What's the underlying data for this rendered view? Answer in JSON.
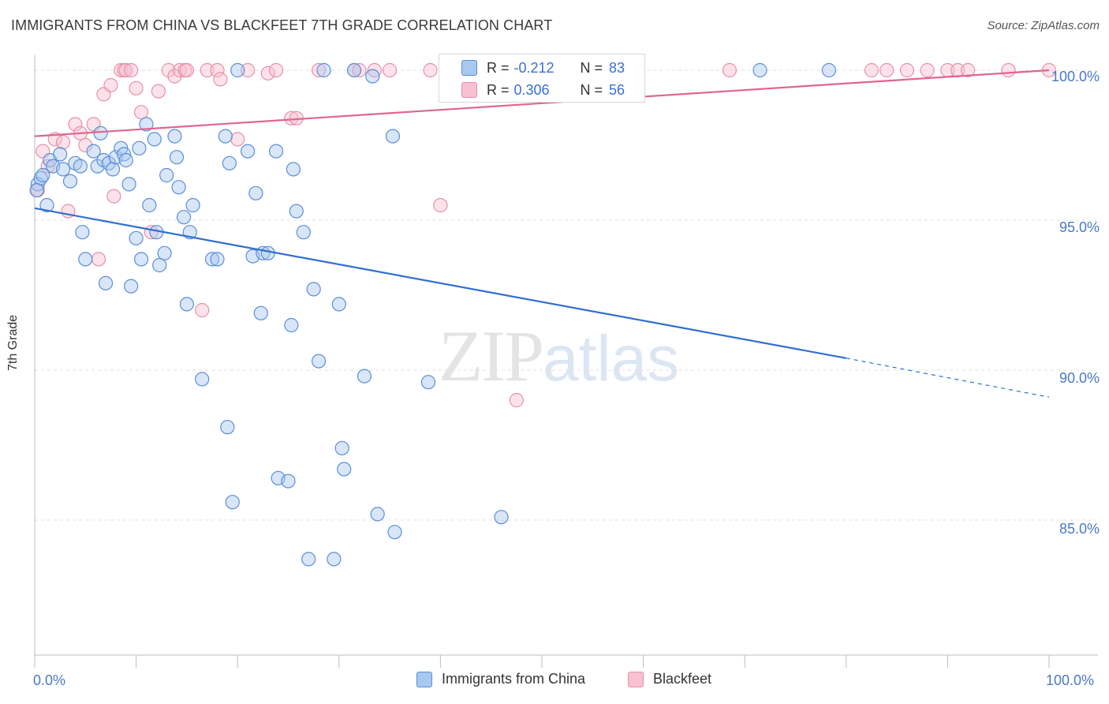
{
  "title": "IMMIGRANTS FROM CHINA VS BLACKFEET 7TH GRADE CORRELATION CHART",
  "source": "Source: ZipAtlas.com",
  "watermark": {
    "zip": "ZIP",
    "atlas": "atlas"
  },
  "legend_top": {
    "rows": [
      {
        "r_label": "R =",
        "r_value": "-0.212",
        "n_label": "N =",
        "n_value": "83"
      },
      {
        "r_label": "R =",
        "r_value": "0.306",
        "n_label": "N =",
        "n_value": "56"
      }
    ]
  },
  "legend_bottom": {
    "china": "Immigrants from China",
    "blackfeet": "Blackfeet"
  },
  "colors": {
    "china_fill": "#a8c8f0",
    "china_stroke": "#5b8fd8",
    "china_line": "#2f6fd0",
    "blackfeet_fill": "#f8c0d0",
    "blackfeet_stroke": "#e890aa",
    "blackfeet_line": "#e0658f",
    "axis_text": "#4a78c8",
    "grid": "#e0e0e0"
  },
  "chart_data": {
    "type": "scatter",
    "title": "IMMIGRANTS FROM CHINA VS BLACKFEET 7TH GRADE CORRELATION CHART",
    "xlabel": "",
    "ylabel": "7th Grade",
    "xlim": [
      0,
      100
    ],
    "ylim": [
      80.5,
      100.5
    ],
    "x_tick_labels": [
      "0.0%",
      "100.0%"
    ],
    "y_ticks": [
      85,
      90,
      95,
      100
    ],
    "y_tick_labels": [
      "85.0%",
      "90.0%",
      "95.0%",
      "100.0%"
    ],
    "grid": "horizontal dashed",
    "legend": "bottom-center",
    "series": [
      {
        "name": "Immigrants from China",
        "R": -0.212,
        "N": 83,
        "trend": {
          "x0": 0,
          "y0": 95.4,
          "x1": 80.0,
          "y1": 90.4,
          "dashed_to_x": 100,
          "dashed_to_y": 89.1
        },
        "points": [
          [
            0.3,
            96.2
          ],
          [
            0.6,
            96.4
          ],
          [
            0.8,
            96.5
          ],
          [
            1.2,
            95.5
          ],
          [
            1.5,
            97.0
          ],
          [
            1.8,
            96.8
          ],
          [
            2.5,
            97.2
          ],
          [
            2.8,
            96.7
          ],
          [
            3.5,
            96.3
          ],
          [
            4.0,
            96.9
          ],
          [
            4.5,
            96.8
          ],
          [
            4.7,
            94.6
          ],
          [
            5.0,
            93.7
          ],
          [
            5.8,
            97.3
          ],
          [
            6.2,
            96.8
          ],
          [
            6.5,
            97.9
          ],
          [
            6.8,
            97.0
          ],
          [
            7.0,
            92.9
          ],
          [
            7.3,
            96.9
          ],
          [
            7.7,
            96.7
          ],
          [
            8.0,
            97.1
          ],
          [
            8.5,
            97.4
          ],
          [
            8.8,
            97.2
          ],
          [
            9.0,
            97.0
          ],
          [
            9.3,
            96.2
          ],
          [
            9.5,
            92.8
          ],
          [
            10.0,
            94.4
          ],
          [
            10.3,
            97.4
          ],
          [
            10.5,
            93.7
          ],
          [
            11.0,
            98.2
          ],
          [
            11.3,
            95.5
          ],
          [
            11.8,
            97.7
          ],
          [
            12.0,
            94.6
          ],
          [
            12.3,
            93.5
          ],
          [
            12.8,
            93.9
          ],
          [
            13.0,
            96.5
          ],
          [
            13.8,
            97.8
          ],
          [
            14.0,
            97.1
          ],
          [
            14.2,
            96.1
          ],
          [
            14.7,
            95.1
          ],
          [
            15.0,
            92.2
          ],
          [
            15.3,
            94.6
          ],
          [
            15.6,
            95.5
          ],
          [
            16.5,
            89.7
          ],
          [
            17.5,
            93.7
          ],
          [
            18.0,
            93.7
          ],
          [
            18.8,
            97.8
          ],
          [
            19.0,
            88.1
          ],
          [
            19.2,
            96.9
          ],
          [
            19.5,
            85.6
          ],
          [
            20.0,
            100.0
          ],
          [
            21.0,
            97.3
          ],
          [
            21.5,
            93.8
          ],
          [
            21.8,
            95.9
          ],
          [
            22.3,
            91.9
          ],
          [
            22.5,
            93.9
          ],
          [
            23.0,
            93.9
          ],
          [
            23.8,
            97.3
          ],
          [
            24.0,
            86.4
          ],
          [
            25.0,
            86.3
          ],
          [
            25.3,
            91.5
          ],
          [
            25.5,
            96.7
          ],
          [
            25.8,
            95.3
          ],
          [
            26.5,
            94.6
          ],
          [
            27.0,
            83.7
          ],
          [
            27.5,
            92.7
          ],
          [
            28.0,
            90.3
          ],
          [
            29.5,
            83.7
          ],
          [
            30.0,
            92.2
          ],
          [
            30.3,
            87.4
          ],
          [
            30.5,
            86.7
          ],
          [
            31.5,
            100.0
          ],
          [
            32.5,
            89.8
          ],
          [
            33.3,
            99.8
          ],
          [
            33.8,
            85.2
          ],
          [
            35.3,
            97.8
          ],
          [
            35.5,
            84.6
          ],
          [
            38.8,
            89.6
          ],
          [
            46.0,
            85.1
          ],
          [
            28.5,
            100.0
          ],
          [
            71.5,
            100.0
          ],
          [
            78.3,
            100.0
          ],
          [
            0.2,
            96.0
          ]
        ]
      },
      {
        "name": "Blackfeet",
        "R": 0.306,
        "N": 56,
        "trend": {
          "x0": 0,
          "y0": 97.8,
          "x1": 100,
          "y1": 100.0
        },
        "points": [
          [
            0.3,
            96.0
          ],
          [
            0.8,
            97.3
          ],
          [
            1.3,
            96.8
          ],
          [
            2.0,
            97.7
          ],
          [
            2.8,
            97.6
          ],
          [
            3.3,
            95.3
          ],
          [
            4.0,
            98.2
          ],
          [
            4.5,
            97.9
          ],
          [
            5.0,
            97.5
          ],
          [
            5.8,
            98.2
          ],
          [
            6.3,
            93.7
          ],
          [
            6.8,
            99.2
          ],
          [
            7.5,
            99.5
          ],
          [
            7.8,
            95.8
          ],
          [
            8.5,
            100.0
          ],
          [
            8.8,
            100.0
          ],
          [
            9.0,
            100.0
          ],
          [
            9.5,
            100.0
          ],
          [
            10.0,
            99.4
          ],
          [
            10.5,
            98.6
          ],
          [
            11.5,
            94.6
          ],
          [
            12.2,
            99.3
          ],
          [
            13.2,
            100.0
          ],
          [
            13.8,
            99.8
          ],
          [
            14.3,
            100.0
          ],
          [
            14.8,
            100.0
          ],
          [
            15.0,
            100.0
          ],
          [
            16.5,
            92.0
          ],
          [
            17.0,
            100.0
          ],
          [
            18.0,
            100.0
          ],
          [
            18.3,
            99.7
          ],
          [
            20.0,
            97.7
          ],
          [
            21.0,
            100.0
          ],
          [
            23.0,
            99.9
          ],
          [
            23.8,
            100.0
          ],
          [
            25.3,
            98.4
          ],
          [
            25.8,
            98.4
          ],
          [
            28.0,
            100.0
          ],
          [
            31.5,
            100.0
          ],
          [
            32.0,
            100.0
          ],
          [
            33.5,
            100.0
          ],
          [
            35.0,
            100.0
          ],
          [
            39.0,
            100.0
          ],
          [
            40.0,
            95.5
          ],
          [
            47.0,
            100.0
          ],
          [
            47.5,
            89.0
          ],
          [
            68.5,
            100.0
          ],
          [
            82.5,
            100.0
          ],
          [
            84.0,
            100.0
          ],
          [
            86.0,
            100.0
          ],
          [
            88.0,
            100.0
          ],
          [
            90.0,
            100.0
          ],
          [
            91.0,
            100.0
          ],
          [
            92.0,
            100.0
          ],
          [
            96.0,
            100.0
          ],
          [
            100.0,
            100.0
          ]
        ]
      }
    ]
  }
}
